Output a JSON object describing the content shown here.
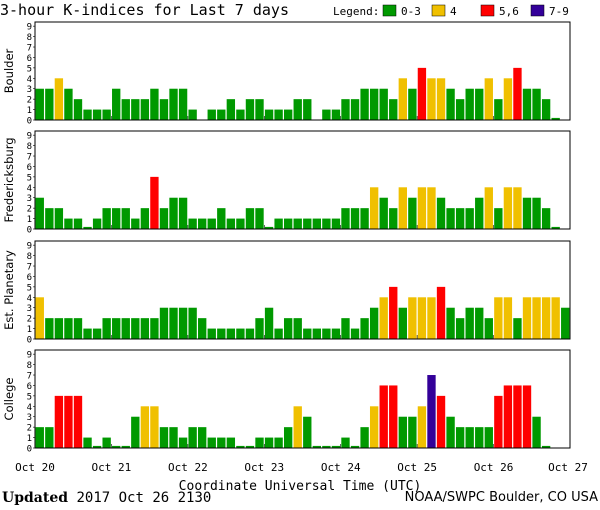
{
  "chart_data": {
    "type": "bar",
    "title": "3-hour K-indices for Last 7 days",
    "xlabel": "Coordinate Universal Time (UTC)",
    "ylim": [
      0,
      9
    ],
    "yticks": [
      "0",
      "1",
      "2",
      "3",
      "4",
      "5",
      "6",
      "7",
      "8",
      "9"
    ],
    "x_ticks": [
      "Oct 20",
      "Oct 21",
      "Oct 22",
      "Oct 23",
      "Oct 24",
      "Oct 25",
      "Oct 26",
      "Oct 27"
    ],
    "legend": {
      "label": "Legend:",
      "entries": [
        {
          "label": "0-3",
          "color": "#009900"
        },
        {
          "label": "4",
          "color": "#f0c000"
        },
        {
          "label": "5,6",
          "color": "#ff0000"
        },
        {
          "label": "7-9",
          "color": "#330099"
        }
      ]
    },
    "panels": [
      {
        "name": "Boulder",
        "values": [
          3,
          3,
          4,
          3,
          2,
          1,
          1,
          1,
          3,
          2,
          2,
          2,
          3,
          2,
          3,
          3,
          1,
          0,
          1,
          1,
          2,
          1,
          2,
          2,
          1,
          1,
          1,
          2,
          2,
          0,
          1,
          1,
          2,
          2,
          3,
          3,
          3,
          2,
          4,
          3,
          5,
          4,
          4,
          3,
          2,
          3,
          3,
          4,
          2,
          4,
          5,
          3,
          3,
          2,
          0.2
        ]
      },
      {
        "name": "Fredericksburg",
        "values": [
          3,
          2,
          2,
          1,
          1,
          0.2,
          1,
          2,
          2,
          2,
          1,
          2,
          5,
          2,
          3,
          3,
          1,
          1,
          1,
          2,
          1,
          1,
          2,
          2,
          0.2,
          1,
          1,
          1,
          1,
          1,
          1,
          1,
          2,
          2,
          2,
          4,
          3,
          2,
          4,
          3,
          4,
          4,
          3,
          2,
          2,
          2,
          3,
          4,
          2,
          4,
          4,
          3,
          3,
          2,
          0.2
        ]
      },
      {
        "name": "Est. Planetary",
        "values": [
          4,
          2,
          2,
          2,
          2,
          1,
          1,
          2,
          2,
          2,
          2,
          2,
          2,
          3,
          3,
          3,
          3,
          2,
          1,
          1,
          1,
          1,
          1,
          2,
          3,
          1,
          2,
          2,
          1,
          1,
          1,
          1,
          2,
          1,
          2,
          3,
          4,
          5,
          3,
          4,
          4,
          4,
          5,
          3,
          2,
          3,
          3,
          2,
          4,
          4,
          2,
          4,
          4,
          4,
          4,
          3
        ]
      },
      {
        "name": "College",
        "values": [
          2,
          2,
          5,
          5,
          5,
          1,
          0.2,
          1,
          0.2,
          0.2,
          3,
          4,
          4,
          2,
          2,
          1,
          2,
          2,
          1,
          1,
          1,
          0.2,
          0.2,
          1,
          1,
          1,
          2,
          4,
          3,
          0.2,
          0.2,
          0.2,
          1,
          0.2,
          2,
          4,
          6,
          6,
          3,
          3,
          4,
          7,
          5,
          3,
          2,
          2,
          2,
          2,
          5,
          6,
          6,
          6,
          3,
          0.2
        ]
      }
    ]
  },
  "footer": {
    "updated_label": "Updated",
    "updated_value": "2017 Oct 26 2130",
    "source": "NOAA/SWPC Boulder, CO USA"
  }
}
